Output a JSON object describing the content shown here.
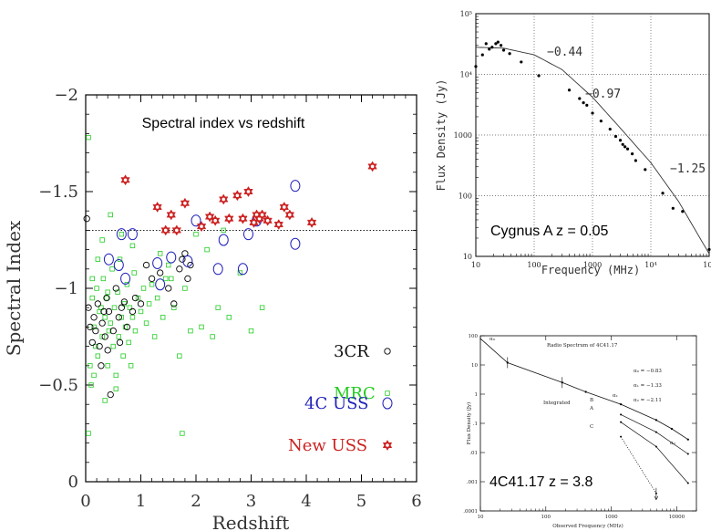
{
  "colors": {
    "cr3": "#000000",
    "mrc": "#22cc22",
    "uss4c": "#2222bb",
    "newuss": "#cc2222"
  },
  "chart_data": [
    {
      "id": "main",
      "type": "scatter",
      "title": "Spectral index vs redshift",
      "xlabel": "Redshift",
      "ylabel": "Spectral Index",
      "xlim": [
        0,
        6
      ],
      "ylim": [
        0,
        -2
      ],
      "xticks": [
        "0",
        "1",
        "2",
        "3",
        "4",
        "5",
        "6"
      ],
      "yticks": [
        "0",
        "−0.5",
        "−1",
        "−1.5",
        "−2"
      ],
      "threshold_line": -1.3,
      "legend": [
        {
          "label": "3CR",
          "series": "3CR"
        },
        {
          "label": "MRC",
          "series": "MRC"
        },
        {
          "label": "4C USS",
          "series": "4C USS"
        },
        {
          "label": "New USS",
          "series": "New USS"
        }
      ],
      "series": [
        {
          "name": "3CR",
          "marker": "circle",
          "points": [
            [
              0.02,
              -1.36
            ],
            [
              0.05,
              -0.9
            ],
            [
              0.08,
              -0.8
            ],
            [
              0.12,
              -0.72
            ],
            [
              0.15,
              -0.85
            ],
            [
              0.18,
              -0.78
            ],
            [
              0.22,
              -0.92
            ],
            [
              0.25,
              -0.7
            ],
            [
              0.3,
              -0.82
            ],
            [
              0.33,
              -0.88
            ],
            [
              0.35,
              -0.75
            ],
            [
              0.38,
              -0.95
            ],
            [
              0.42,
              -0.88
            ],
            [
              0.45,
              -0.45
            ],
            [
              0.5,
              -0.78
            ],
            [
              0.55,
              -1.0
            ],
            [
              0.6,
              -0.85
            ],
            [
              0.65,
              -0.9
            ],
            [
              0.7,
              -0.93
            ],
            [
              0.75,
              -0.8
            ],
            [
              0.85,
              -0.88
            ],
            [
              0.9,
              -0.95
            ],
            [
              1.0,
              -0.92
            ],
            [
              1.1,
              -1.12
            ],
            [
              1.2,
              -1.05
            ],
            [
              1.35,
              -1.08
            ],
            [
              1.5,
              -1.0
            ],
            [
              1.6,
              -0.92
            ],
            [
              1.7,
              -1.1
            ],
            [
              1.75,
              -1.15
            ],
            [
              1.8,
              -1.18
            ],
            [
              1.85,
              -1.05
            ],
            [
              1.9,
              -1.12
            ],
            [
              0.28,
              -0.6
            ],
            [
              0.4,
              -0.68
            ],
            [
              0.62,
              -0.72
            ]
          ]
        },
        {
          "name": "MRC",
          "marker": "square",
          "points": [
            [
              0.05,
              -1.78
            ],
            [
              0.05,
              -0.25
            ],
            [
              0.08,
              -0.6
            ],
            [
              0.1,
              -0.5
            ],
            [
              0.12,
              -0.95
            ],
            [
              0.15,
              -0.8
            ],
            [
              0.18,
              -0.7
            ],
            [
              0.2,
              -1.0
            ],
            [
              0.22,
              -0.65
            ],
            [
              0.25,
              -0.88
            ],
            [
              0.28,
              -0.9
            ],
            [
              0.3,
              -0.75
            ],
            [
              0.32,
              -1.05
            ],
            [
              0.35,
              -0.85
            ],
            [
              0.38,
              -0.95
            ],
            [
              0.4,
              -0.6
            ],
            [
              0.42,
              -0.78
            ],
            [
              0.45,
              -0.82
            ],
            [
              0.48,
              -1.1
            ],
            [
              0.5,
              -0.7
            ],
            [
              0.52,
              -0.9
            ],
            [
              0.55,
              -0.55
            ],
            [
              0.58,
              -0.98
            ],
            [
              0.6,
              -0.75
            ],
            [
              0.62,
              -1.15
            ],
            [
              0.65,
              -0.85
            ],
            [
              0.68,
              -0.65
            ],
            [
              0.7,
              -0.92
            ],
            [
              0.72,
              -0.8
            ],
            [
              0.75,
              -1.02
            ],
            [
              0.78,
              -0.72
            ],
            [
              0.8,
              -0.9
            ],
            [
              0.82,
              -0.6
            ],
            [
              0.85,
              -0.85
            ],
            [
              0.88,
              -1.08
            ],
            [
              0.9,
              -0.78
            ],
            [
              0.95,
              -0.95
            ],
            [
              1.0,
              -0.88
            ],
            [
              1.05,
              -1.0
            ],
            [
              1.1,
              -0.82
            ],
            [
              1.15,
              -0.92
            ],
            [
              1.2,
              -1.02
            ],
            [
              1.25,
              -0.75
            ],
            [
              1.3,
              -0.95
            ],
            [
              1.35,
              -1.18
            ],
            [
              1.4,
              -0.85
            ],
            [
              1.45,
              -1.05
            ],
            [
              1.5,
              -1.12
            ],
            [
              1.6,
              -0.9
            ],
            [
              1.7,
              -0.65
            ],
            [
              1.75,
              -0.25
            ],
            [
              1.8,
              -1.0
            ],
            [
              1.9,
              -0.78
            ],
            [
              2.0,
              -1.28
            ],
            [
              2.1,
              -0.8
            ],
            [
              2.2,
              -1.2
            ],
            [
              2.3,
              -0.75
            ],
            [
              2.4,
              -0.9
            ],
            [
              2.5,
              -1.3
            ],
            [
              2.6,
              -0.85
            ],
            [
              2.8,
              -1.08
            ],
            [
              3.0,
              -0.78
            ],
            [
              3.2,
              -0.9
            ],
            [
              0.3,
              -1.25
            ],
            [
              0.45,
              -1.38
            ],
            [
              0.15,
              -0.55
            ],
            [
              0.35,
              -0.42
            ],
            [
              0.55,
              -0.48
            ],
            [
              0.65,
              -1.28
            ],
            [
              0.85,
              -1.22
            ],
            [
              0.22,
              -1.15
            ],
            [
              1.55,
              -1.05
            ],
            [
              0.12,
              -1.05
            ],
            [
              0.4,
              -0.98
            ]
          ]
        },
        {
          "name": "4C USS",
          "marker": "ellipse",
          "points": [
            [
              0.42,
              -1.15
            ],
            [
              0.6,
              -1.12
            ],
            [
              0.65,
              -1.28
            ],
            [
              0.72,
              -1.05
            ],
            [
              0.85,
              -1.28
            ],
            [
              1.3,
              -1.13
            ],
            [
              1.35,
              -1.02
            ],
            [
              1.55,
              -1.16
            ],
            [
              1.85,
              -1.14
            ],
            [
              2.0,
              -1.35
            ],
            [
              2.4,
              -1.1
            ],
            [
              2.5,
              -1.25
            ],
            [
              2.85,
              -1.1
            ],
            [
              2.95,
              -1.28
            ],
            [
              3.1,
              -1.35
            ],
            [
              3.8,
              -1.53
            ],
            [
              3.8,
              -1.23
            ]
          ]
        },
        {
          "name": "New USS",
          "marker": "star",
          "points": [
            [
              0.72,
              -1.56
            ],
            [
              1.3,
              -1.42
            ],
            [
              1.45,
              -1.3
            ],
            [
              1.55,
              -1.38
            ],
            [
              1.65,
              -1.3
            ],
            [
              1.8,
              -1.44
            ],
            [
              2.1,
              -1.32
            ],
            [
              2.25,
              -1.37
            ],
            [
              2.35,
              -1.35
            ],
            [
              2.5,
              -1.46
            ],
            [
              2.6,
              -1.36
            ],
            [
              2.75,
              -1.48
            ],
            [
              2.85,
              -1.36
            ],
            [
              2.95,
              -1.5
            ],
            [
              3.05,
              -1.34
            ],
            [
              3.1,
              -1.38
            ],
            [
              3.15,
              -1.36
            ],
            [
              3.2,
              -1.38
            ],
            [
              3.3,
              -1.35
            ],
            [
              3.5,
              -1.33
            ],
            [
              3.6,
              -1.42
            ],
            [
              3.7,
              -1.38
            ],
            [
              4.1,
              -1.34
            ],
            [
              5.2,
              -1.63
            ]
          ]
        }
      ]
    },
    {
      "id": "cygnus",
      "type": "line",
      "annotation": "Cygnus A z = 0.05",
      "xlabel": "Frequency (MHz)",
      "ylabel": "Flux Density (Jy)",
      "xscale": "log",
      "yscale": "log",
      "xlim": [
        10,
        100000
      ],
      "ylim": [
        10,
        100000
      ],
      "xticks": [
        "10",
        "100",
        "1000",
        "10⁴",
        "10⁵"
      ],
      "yticks": [
        "10",
        "100",
        "1000",
        "10⁴",
        "10⁵"
      ],
      "slope_labels": [
        "−0.44",
        "−0.97",
        "−1.25"
      ],
      "points": [
        [
          10,
          13500
        ],
        [
          13,
          21000
        ],
        [
          15,
          32000
        ],
        [
          17,
          26000
        ],
        [
          19,
          28000
        ],
        [
          22,
          32000
        ],
        [
          24,
          34000
        ],
        [
          27,
          30000
        ],
        [
          30,
          25000
        ],
        [
          38,
          22000
        ],
        [
          60,
          16000
        ],
        [
          120,
          9500
        ],
        [
          400,
          5500
        ],
        [
          600,
          4000
        ],
        [
          700,
          3400
        ],
        [
          800,
          3100
        ],
        [
          1000,
          2300
        ],
        [
          1400,
          1700
        ],
        [
          2000,
          1250
        ],
        [
          2500,
          950
        ],
        [
          3000,
          820
        ],
        [
          3300,
          700
        ],
        [
          3600,
          640
        ],
        [
          4000,
          590
        ],
        [
          4800,
          490
        ],
        [
          5500,
          380
        ],
        [
          8000,
          270
        ],
        [
          16000,
          110
        ],
        [
          24000,
          62
        ],
        [
          35000,
          55
        ],
        [
          100000,
          13
        ]
      ],
      "curve": [
        [
          10,
          28000
        ],
        [
          30,
          27000
        ],
        [
          100,
          21000
        ],
        [
          300,
          12000
        ],
        [
          1000,
          4200
        ],
        [
          3000,
          1300
        ],
        [
          10000,
          350
        ],
        [
          30000,
          80
        ],
        [
          100000,
          11
        ]
      ]
    },
    {
      "id": "4c41",
      "type": "line",
      "title": "Radio Spectrum of 4C41.17",
      "annotation": "4C41.17 z = 3.8",
      "xlabel": "Observed Frequency (MHz)",
      "ylabel": "Flux Density (Jy)",
      "xscale": "log",
      "yscale": "log",
      "xlim": [
        10,
        20000
      ],
      "ylim": [
        0.0001,
        100
      ],
      "xticks": [
        "10",
        "100",
        "1000",
        "10000"
      ],
      "yticks": [
        "100",
        "10",
        "1",
        ".1",
        ".01",
        ".001",
        ".0001"
      ],
      "alpha_legend": [
        "α₀  =  −0.83",
        "α₁  =  −1.33",
        "α₂  =  −2.11"
      ],
      "labels": {
        "integrated": "Integrated",
        "a0": "α₀",
        "a1": "α₁",
        "a2": "α₂",
        "A": "A",
        "B": "B",
        "C": "C"
      },
      "integrated_points": [
        [
          10,
          80
        ],
        [
          26,
          12
        ],
        [
          178,
          2.5
        ],
        [
          408,
          1.2
        ],
        [
          1400,
          0.45
        ],
        [
          4860,
          0.13
        ],
        [
          8400,
          0.065
        ],
        [
          14900,
          0.028
        ]
      ],
      "B_points": [
        [
          1400,
          0.2
        ],
        [
          4860,
          0.05
        ],
        [
          14900,
          0.009
        ]
      ],
      "A_points": [
        [
          1400,
          0.11
        ],
        [
          4860,
          0.016
        ],
        [
          14900,
          0.0009
        ]
      ],
      "C_points": [
        [
          1400,
          0.035
        ],
        [
          4860,
          0.0004
        ]
      ]
    }
  ]
}
